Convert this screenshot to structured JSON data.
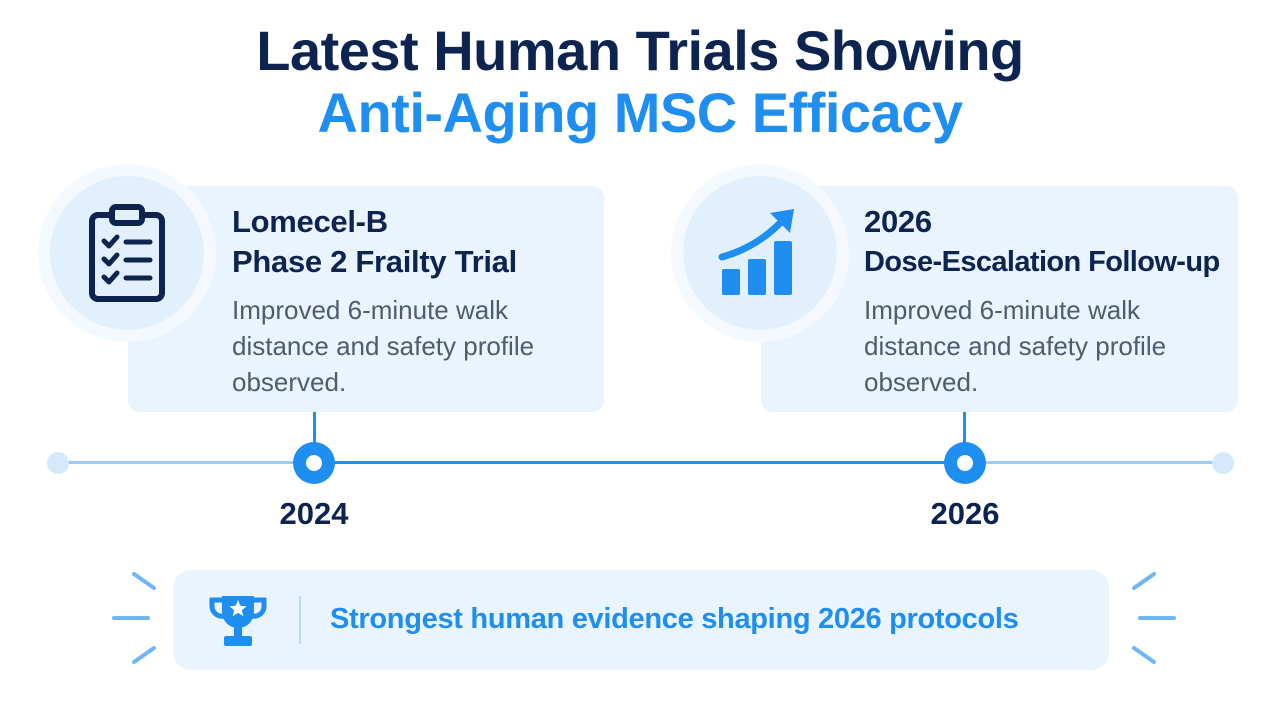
{
  "header": {
    "line1": "Latest Human Trials Showing",
    "line2": "Anti-Aging MSC Efficacy"
  },
  "milestones": [
    {
      "title_line1": "Lomecel-B",
      "title_line2": "Phase 2 Frailty Trial",
      "description": "Improved 6-minute walk distance and safety profile observed.",
      "year": "2024",
      "icon": "clipboard-checklist-icon"
    },
    {
      "title_line1": "2026",
      "title_line2": "Dose-Escalation Follow-up",
      "description": "Improved 6-minute walk distance and safety profile observed.",
      "year": "2026",
      "icon": "bar-chart-growth-icon"
    }
  ],
  "banner": {
    "text": "Strongest human evidence shaping 2026 protocols",
    "icon": "trophy-icon"
  },
  "colors": {
    "navy": "#0d2350",
    "accent": "#1e8ef0",
    "card_bg": "#eaf4fe",
    "body_text": "#4f5b6e"
  }
}
